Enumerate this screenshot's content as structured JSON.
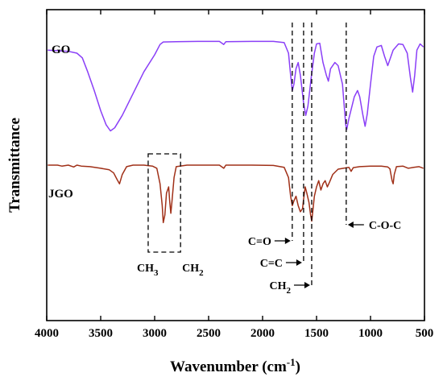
{
  "chart_data": {
    "type": "line",
    "title": "",
    "xlabel": "Wavenumber (cm⁻¹)",
    "ylabel": "Transmittance",
    "xlim": [
      4000,
      500
    ],
    "x_reversed": true,
    "x_ticks": [
      4000,
      3500,
      3000,
      2500,
      2000,
      1500,
      1000,
      500
    ],
    "y_ticks": [],
    "grid": false,
    "legend": "inline labels at left of each curve",
    "series": [
      {
        "name": "GO",
        "color": "#8a3ff7",
        "label_color": "#8a3ff7",
        "points": [
          [
            3990,
            0.87
          ],
          [
            3900,
            0.868
          ],
          [
            3800,
            0.866
          ],
          [
            3720,
            0.86
          ],
          [
            3670,
            0.845
          ],
          [
            3620,
            0.8
          ],
          [
            3560,
            0.74
          ],
          [
            3500,
            0.675
          ],
          [
            3450,
            0.63
          ],
          [
            3410,
            0.61
          ],
          [
            3370,
            0.62
          ],
          [
            3300,
            0.66
          ],
          [
            3200,
            0.73
          ],
          [
            3100,
            0.8
          ],
          [
            3000,
            0.855
          ],
          [
            2950,
            0.888
          ],
          [
            2920,
            0.896
          ],
          [
            2800,
            0.897
          ],
          [
            2600,
            0.898
          ],
          [
            2400,
            0.898
          ],
          [
            2360,
            0.888
          ],
          [
            2340,
            0.897
          ],
          [
            2100,
            0.898
          ],
          [
            1900,
            0.898
          ],
          [
            1800,
            0.894
          ],
          [
            1760,
            0.86
          ],
          [
            1740,
            0.79
          ],
          [
            1725,
            0.74
          ],
          [
            1710,
            0.76
          ],
          [
            1690,
            0.81
          ],
          [
            1670,
            0.83
          ],
          [
            1650,
            0.79
          ],
          [
            1620,
            0.7
          ],
          [
            1600,
            0.66
          ],
          [
            1580,
            0.69
          ],
          [
            1550,
            0.78
          ],
          [
            1520,
            0.86
          ],
          [
            1500,
            0.89
          ],
          [
            1470,
            0.892
          ],
          [
            1440,
            0.83
          ],
          [
            1410,
            0.79
          ],
          [
            1390,
            0.77
          ],
          [
            1370,
            0.81
          ],
          [
            1330,
            0.83
          ],
          [
            1300,
            0.82
          ],
          [
            1260,
            0.76
          ],
          [
            1230,
            0.63
          ],
          [
            1220,
            0.615
          ],
          [
            1200,
            0.65
          ],
          [
            1150,
            0.72
          ],
          [
            1120,
            0.74
          ],
          [
            1100,
            0.72
          ],
          [
            1070,
            0.66
          ],
          [
            1050,
            0.625
          ],
          [
            1030,
            0.665
          ],
          [
            1000,
            0.76
          ],
          [
            970,
            0.85
          ],
          [
            940,
            0.88
          ],
          [
            900,
            0.885
          ],
          [
            870,
            0.85
          ],
          [
            840,
            0.82
          ],
          [
            820,
            0.84
          ],
          [
            790,
            0.87
          ],
          [
            740,
            0.89
          ],
          [
            700,
            0.888
          ],
          [
            660,
            0.86
          ],
          [
            630,
            0.78
          ],
          [
            610,
            0.735
          ],
          [
            590,
            0.79
          ],
          [
            570,
            0.87
          ],
          [
            540,
            0.89
          ],
          [
            510,
            0.88
          ]
        ]
      },
      {
        "name": "JGO",
        "color": "#a03018",
        "label_color": "#c0392b",
        "points": [
          [
            3990,
            0.5
          ],
          [
            3900,
            0.5
          ],
          [
            3860,
            0.497
          ],
          [
            3800,
            0.5
          ],
          [
            3750,
            0.494
          ],
          [
            3720,
            0.5
          ],
          [
            3680,
            0.497
          ],
          [
            3600,
            0.495
          ],
          [
            3500,
            0.49
          ],
          [
            3420,
            0.485
          ],
          [
            3380,
            0.475
          ],
          [
            3350,
            0.455
          ],
          [
            3325,
            0.44
          ],
          [
            3300,
            0.47
          ],
          [
            3260,
            0.495
          ],
          [
            3200,
            0.5
          ],
          [
            3100,
            0.5
          ],
          [
            3020,
            0.497
          ],
          [
            2980,
            0.49
          ],
          [
            2950,
            0.44
          ],
          [
            2930,
            0.37
          ],
          [
            2920,
            0.315
          ],
          [
            2905,
            0.34
          ],
          [
            2890,
            0.41
          ],
          [
            2870,
            0.43
          ],
          [
            2860,
            0.38
          ],
          [
            2850,
            0.345
          ],
          [
            2840,
            0.38
          ],
          [
            2820,
            0.46
          ],
          [
            2800,
            0.495
          ],
          [
            2700,
            0.5
          ],
          [
            2500,
            0.5
          ],
          [
            2400,
            0.5
          ],
          [
            2360,
            0.49
          ],
          [
            2340,
            0.5
          ],
          [
            2100,
            0.5
          ],
          [
            1900,
            0.499
          ],
          [
            1800,
            0.493
          ],
          [
            1760,
            0.46
          ],
          [
            1740,
            0.4
          ],
          [
            1725,
            0.37
          ],
          [
            1710,
            0.385
          ],
          [
            1690,
            0.4
          ],
          [
            1670,
            0.37
          ],
          [
            1650,
            0.35
          ],
          [
            1630,
            0.36
          ],
          [
            1620,
            0.39
          ],
          [
            1605,
            0.43
          ],
          [
            1590,
            0.41
          ],
          [
            1570,
            0.38
          ],
          [
            1555,
            0.34
          ],
          [
            1545,
            0.32
          ],
          [
            1535,
            0.35
          ],
          [
            1520,
            0.4
          ],
          [
            1500,
            0.43
          ],
          [
            1480,
            0.45
          ],
          [
            1460,
            0.42
          ],
          [
            1440,
            0.44
          ],
          [
            1420,
            0.45
          ],
          [
            1400,
            0.43
          ],
          [
            1380,
            0.445
          ],
          [
            1350,
            0.47
          ],
          [
            1300,
            0.487
          ],
          [
            1250,
            0.49
          ],
          [
            1200,
            0.493
          ],
          [
            1180,
            0.48
          ],
          [
            1160,
            0.492
          ],
          [
            1100,
            0.495
          ],
          [
            1000,
            0.497
          ],
          [
            900,
            0.497
          ],
          [
            840,
            0.494
          ],
          [
            820,
            0.488
          ],
          [
            800,
            0.45
          ],
          [
            790,
            0.44
          ],
          [
            780,
            0.47
          ],
          [
            760,
            0.495
          ],
          [
            700,
            0.497
          ],
          [
            650,
            0.49
          ],
          [
            600,
            0.493
          ],
          [
            550,
            0.495
          ],
          [
            510,
            0.49
          ]
        ]
      }
    ],
    "annotations": [
      {
        "text": "C=O",
        "wavenumber": 1725,
        "arrow": "right"
      },
      {
        "text": "C=C",
        "wavenumber": 1620,
        "arrow": "right"
      },
      {
        "text": "CH₂",
        "wavenumber": 1545,
        "arrow": "right"
      },
      {
        "text": "C-O-C",
        "wavenumber": 1225,
        "arrow": "left"
      },
      {
        "text": "CH₃",
        "wavenumber": 2920,
        "boxed": true
      },
      {
        "text": "CH₂",
        "wavenumber": 2850,
        "boxed": true
      }
    ],
    "region_box": {
      "x_from": 3060,
      "x_to": 2760
    }
  }
}
